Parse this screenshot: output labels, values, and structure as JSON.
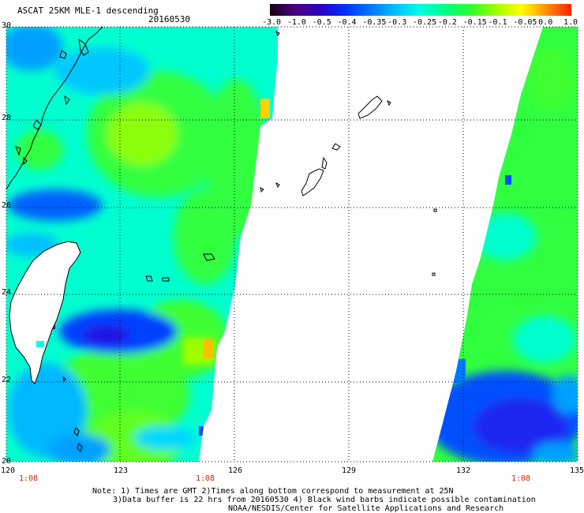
{
  "header": {
    "title": "ASCAT 25KM MLE-1 descending",
    "date": "20160530"
  },
  "colorbar": {
    "labels": [
      "-3.0",
      "-1.0",
      "-0.5",
      "-0.4",
      "-0.35",
      "-0.3",
      "-0.25",
      "-0.2",
      "-0.15",
      "-0.1",
      "-0.05",
      "0.0",
      "1.0"
    ],
    "colors": [
      "#1a0010",
      "#4a0080",
      "#2a00c0",
      "#0030ff",
      "#0078ff",
      "#00c0ff",
      "#00ffe0",
      "#00ff80",
      "#30ff30",
      "#a0ff00",
      "#ffff00",
      "#ff9000",
      "#ff2000"
    ]
  },
  "axes": {
    "lon_labels": [
      "120",
      "123",
      "126",
      "129",
      "132",
      "135"
    ],
    "lat_labels": [
      "30",
      "28",
      "26",
      "24",
      "22",
      "20"
    ],
    "time_labels": [
      "1:08",
      "1:08",
      "1:08"
    ]
  },
  "notes": {
    "line1": "Note: 1) Times are GMT 2)Times along bottom correspond to measurement at 25N",
    "line2": "3)Data buffer is 22 hrs from 20160530 4) Black wind barbs indicate possible contamination",
    "line3": "NOAA/NESDIS/Center for Satellite Applications and Research"
  }
}
